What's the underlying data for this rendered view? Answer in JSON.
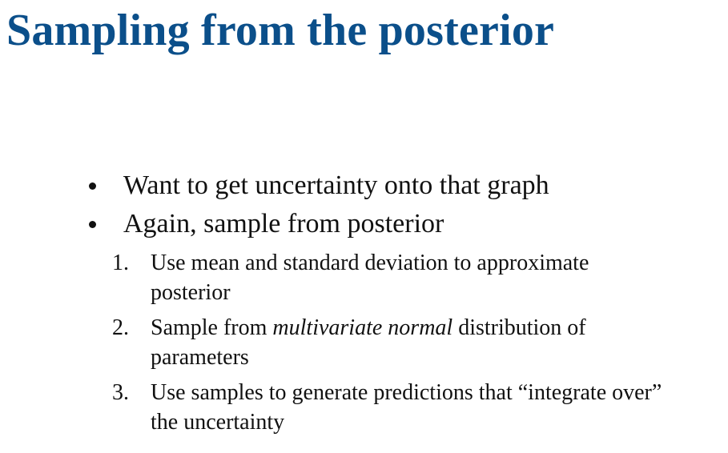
{
  "title": "Sampling from the posterior",
  "bullets": [
    "Want to get uncertainty onto that graph",
    "Again, sample from posterior"
  ],
  "steps": [
    {
      "number": "1.",
      "line1": "Use mean and standard deviation to approximate",
      "line2": "posterior"
    },
    {
      "number": "2.",
      "before": "Sample from ",
      "italic": "multivariate normal",
      "after": " distribution of",
      "line2": "parameters"
    },
    {
      "number": "3.",
      "line1": "Use samples to generate predictions that “integrate over”",
      "line2": "the uncertainty"
    }
  ],
  "colors": {
    "title": "#0b4f8a",
    "text": "#111111",
    "background": "#ffffff"
  }
}
